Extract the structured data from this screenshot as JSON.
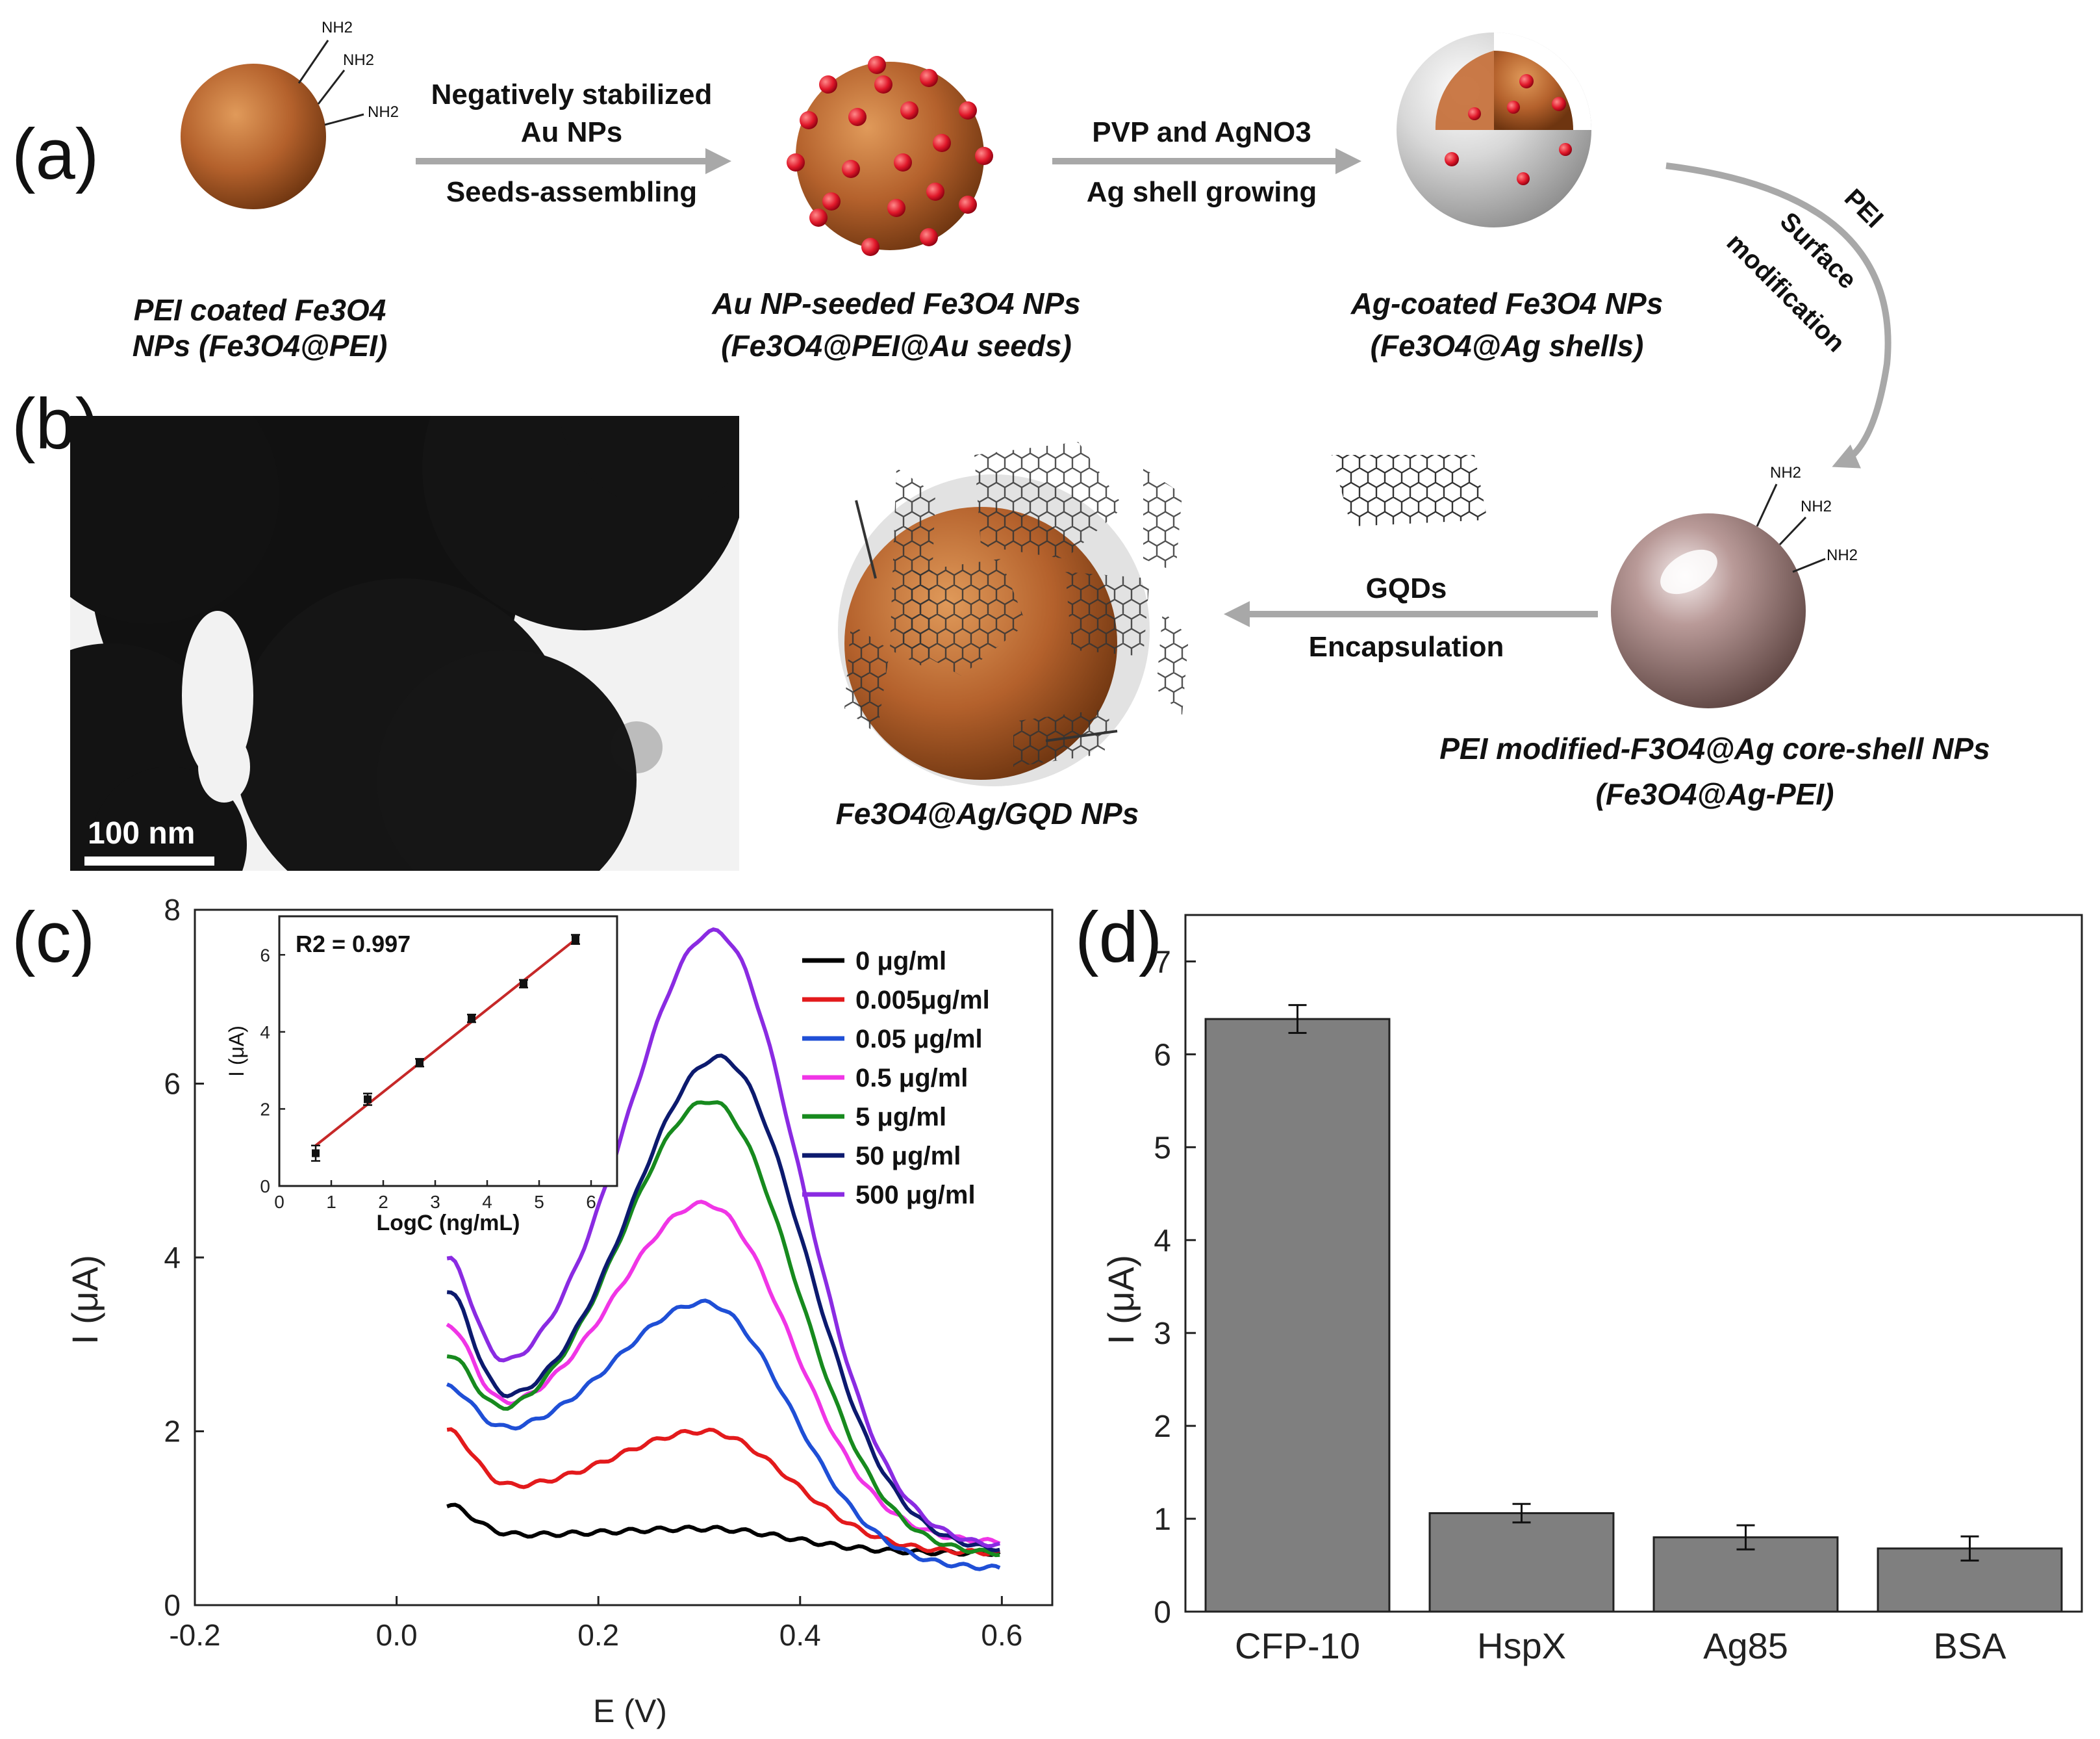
{
  "colors": {
    "core": "#b4612c",
    "core_light": "#d78a4a",
    "seed": "#e0182a",
    "arrow": "#a8a8a8",
    "bar": "#7f7f7f",
    "fit": "#c62828",
    "tem_bg": "#f2f2f2",
    "tem_dark": "#111111"
  },
  "panel_a": {
    "label": "(a)",
    "nh2": "NH2",
    "step1": {
      "line1": "PEI coated Fe3O4",
      "line2": "NPs (Fe3O4@PEI)"
    },
    "arrow1": {
      "top1": "Negatively stabilized",
      "top2": "Au NPs",
      "bottom": "Seeds-assembling"
    },
    "step2": {
      "line1": "Au NP-seeded Fe3O4 NPs",
      "line2": "(Fe3O4@PEI@Au seeds)"
    },
    "arrow2": {
      "top": "PVP and AgNO3",
      "bottom": "Ag shell growing"
    },
    "step3": {
      "line1": "Ag-coated Fe3O4 NPs",
      "line2": "(Fe3O4@Ag shells)"
    },
    "arrow3": {
      "t1": "PEI",
      "t2": "Surface",
      "t3": "modification"
    }
  },
  "panel_b": {
    "label": "(b)",
    "scale_bar": "100 nm",
    "step4": {
      "line1": "PEI modified-F3O4@Ag core-shell NPs",
      "line2": "(Fe3O4@Ag-PEI)"
    },
    "arrow4": {
      "top": "GQDs",
      "bottom": "Encapsulation"
    },
    "step5": {
      "line1": "Fe3O4@Ag/GQD NPs"
    }
  },
  "chart_data": [
    {
      "panel": "(c)",
      "type": "line",
      "title": "",
      "xlabel": "E (V)",
      "ylabel": "I (μA)",
      "xlim": [
        -0.2,
        0.65
      ],
      "ylim": [
        0,
        8
      ],
      "xticks": [
        -0.2,
        0.0,
        0.2,
        0.4,
        0.6
      ],
      "xtick_labels": [
        "-0.2",
        "0.0",
        "0.2",
        "0.4",
        "0.6"
      ],
      "yticks": [
        0,
        2,
        4,
        6,
        8
      ],
      "legend_position": "top-right",
      "peak_x": 0.305,
      "series": [
        {
          "name": "0 μg/ml",
          "color": "#000000",
          "start": 1.15,
          "base": 0.8,
          "peak": 0.88,
          "end": 0.6,
          "peak_shift": 0.0
        },
        {
          "name": "0.005μg/ml",
          "color": "#e31a1c",
          "start": 2.0,
          "base": 1.3,
          "peak": 2.0,
          "end": 0.6,
          "peak_shift": 0.0
        },
        {
          "name": "0.05 μg/ml",
          "color": "#1f4fd6",
          "start": 2.5,
          "base": 1.9,
          "peak": 3.48,
          "end": 0.42,
          "peak_shift": 0.0
        },
        {
          "name": "0.5 μg/ml",
          "color": "#f035e6",
          "start": 3.2,
          "base": 2.1,
          "peak": 4.62,
          "end": 0.72,
          "peak_shift": 0.0
        },
        {
          "name": "5 μg/ml",
          "color": "#178a1e",
          "start": 2.85,
          "base": 2.0,
          "peak": 5.8,
          "end": 0.58,
          "peak_shift": 0.005
        },
        {
          "name": "50 μg/ml",
          "color": "#0c1a6e",
          "start": 3.6,
          "base": 2.15,
          "peak": 6.3,
          "end": 0.62,
          "peak_shift": 0.015
        },
        {
          "name": "500 μg/ml",
          "color": "#8a2be2",
          "start": 3.95,
          "base": 2.45,
          "peak": 7.75,
          "end": 0.66,
          "peak_shift": 0.01
        }
      ],
      "inset": {
        "type": "scatter",
        "xlabel": "LogC (ng/mL)",
        "ylabel": "I (μA)",
        "xlim": [
          0,
          6.5
        ],
        "ylim": [
          0,
          7
        ],
        "xticks": [
          0,
          1,
          2,
          3,
          4,
          5,
          6
        ],
        "yticks": [
          0,
          2,
          4,
          6
        ],
        "annotation": "R2 = 0.997",
        "x": [
          0.7,
          1.7,
          2.7,
          3.7,
          4.7,
          5.7
        ],
        "y": [
          0.85,
          2.25,
          3.2,
          4.35,
          5.25,
          6.4
        ],
        "err": [
          0.2,
          0.15,
          0.1,
          0.1,
          0.1,
          0.12
        ],
        "fit": {
          "x": [
            0.7,
            5.7
          ],
          "y": [
            1.05,
            6.4
          ]
        }
      }
    },
    {
      "panel": "(d)",
      "type": "bar",
      "title": "",
      "xlabel": "",
      "ylabel": "I (μA)",
      "ylim": [
        0,
        7.5
      ],
      "yticks": [
        0,
        1,
        2,
        3,
        4,
        5,
        6,
        7
      ],
      "categories": [
        "CFP-10",
        "HspX",
        "Ag85",
        "BSA"
      ],
      "values": [
        6.38,
        1.06,
        0.8,
        0.68
      ],
      "errors": [
        0.15,
        0.1,
        0.13,
        0.13
      ]
    }
  ]
}
